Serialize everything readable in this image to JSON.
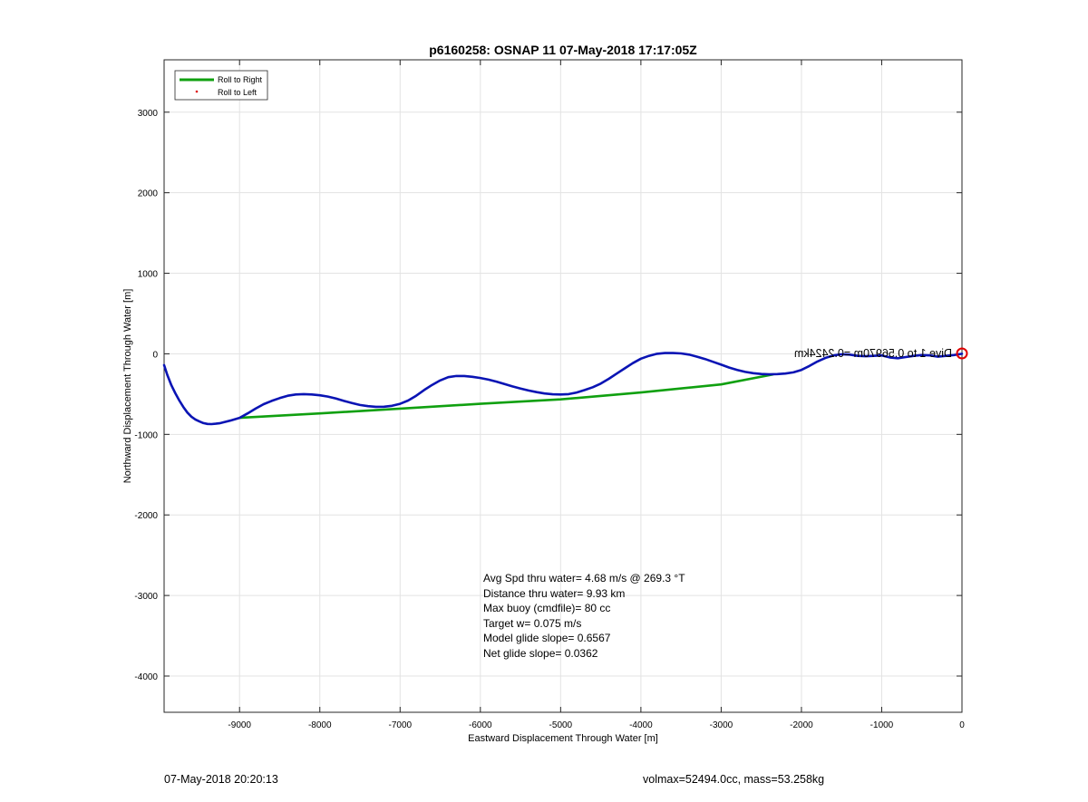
{
  "chart_data": {
    "type": "line",
    "title": "p6160258: OSNAP 11 07-May-2018 17:17:05Z",
    "xlabel": "Eastward Displacement Through Water [m]",
    "ylabel": "Northward Displacement Through Water [m]",
    "xlim": [
      -9940,
      0
    ],
    "ylim": [
      -4450,
      3650
    ],
    "xticks": [
      -9000,
      -8000,
      -7000,
      -6000,
      -5000,
      -4000,
      -3000,
      -2000,
      -1000,
      0
    ],
    "yticks": [
      -4000,
      -3000,
      -2000,
      -1000,
      0,
      1000,
      2000,
      3000
    ],
    "grid": true,
    "legend_position": "top-left",
    "legend": [
      {
        "name": "Roll to Right",
        "color": "#10a010",
        "marker": "line"
      },
      {
        "name": "Roll to Left",
        "color": "#e01010",
        "marker": "dot"
      }
    ],
    "series": [
      {
        "name": "",
        "color": "#0a14b4",
        "x": [
          -9940,
          -9900,
          -9850,
          -9800,
          -9750,
          -9700,
          -9650,
          -9600,
          -9550,
          -9500,
          -9450,
          -9400,
          -9350,
          -9300,
          -9250,
          -9200,
          -9100,
          -9000,
          -8900,
          -8800,
          -8700,
          -8600,
          -8500,
          -8400,
          -8300,
          -8200,
          -8100,
          -8000,
          -7900,
          -7800,
          -7700,
          -7600,
          -7500,
          -7400,
          -7300,
          -7200,
          -7100,
          -7000,
          -6900,
          -6800,
          -6700,
          -6600,
          -6500,
          -6400,
          -6300,
          -6200,
          -6100,
          -6000,
          -5900,
          -5800,
          -5700,
          -5600,
          -5500,
          -5400,
          -5300,
          -5200,
          -5100,
          -5000,
          -4900,
          -4800,
          -4700,
          -4600,
          -4500,
          -4400,
          -4300,
          -4200,
          -4100,
          -4000,
          -3900,
          -3800,
          -3700,
          -3600,
          -3500,
          -3400,
          -3300,
          -3200,
          -3100,
          -3000,
          -2900,
          -2800,
          -2700,
          -2600,
          -2500,
          -2400,
          -2300,
          -2200,
          -2100,
          -2000,
          -1900,
          -1800,
          -1700,
          -1600,
          -1500,
          -1400,
          -1300,
          -1200,
          -1100,
          -1000,
          -900,
          -800,
          -700,
          -600,
          -500,
          -400,
          -300,
          -200,
          -100,
          0
        ],
        "y": [
          -140,
          -260,
          -390,
          -490,
          -580,
          -660,
          -730,
          -780,
          -815,
          -840,
          -860,
          -870,
          -872,
          -868,
          -862,
          -850,
          -825,
          -795,
          -740,
          -680,
          -625,
          -585,
          -550,
          -520,
          -505,
          -500,
          -505,
          -515,
          -530,
          -555,
          -585,
          -610,
          -635,
          -650,
          -658,
          -657,
          -645,
          -620,
          -580,
          -520,
          -450,
          -385,
          -330,
          -290,
          -275,
          -275,
          -285,
          -300,
          -320,
          -345,
          -375,
          -405,
          -430,
          -455,
          -475,
          -492,
          -502,
          -505,
          -500,
          -480,
          -450,
          -415,
          -370,
          -310,
          -245,
          -180,
          -115,
          -60,
          -25,
          0,
          10,
          10,
          5,
          -10,
          -35,
          -65,
          -100,
          -135,
          -170,
          -200,
          -225,
          -240,
          -250,
          -255,
          -252,
          -245,
          -230,
          -200,
          -150,
          -95,
          -50,
          -20,
          -5,
          -10,
          -25,
          -30,
          -25,
          -20,
          -45,
          -55,
          -40,
          -25,
          -15,
          -20,
          -35,
          -25,
          -15,
          0
        ]
      },
      {
        "name": "Roll to Right",
        "color": "#10a010",
        "x": [
          -9000,
          -8000,
          -7000,
          -6000,
          -5000,
          -4000,
          -3000,
          -2350
        ],
        "y": [
          -795,
          -740,
          -680,
          -620,
          -565,
          -480,
          -380,
          -255
        ]
      }
    ],
    "annotations": [
      "Avg Spd thru water=  4.68 m/s @ 269.3 °T",
      "Distance thru water=  9.93 km",
      "Max buoy (cmdfile)= 80 cc",
      "Target w= 0.075 m/s",
      "Model glide slope= 0.6567",
      "Net glide slope= 0.0362"
    ],
    "mirrored_label": "Dive 1 to 0.56970m =0.2424km"
  },
  "footer": {
    "left": "07-May-2018 20:20:13",
    "right": "volmax=52494.0cc, mass=53.258kg"
  }
}
